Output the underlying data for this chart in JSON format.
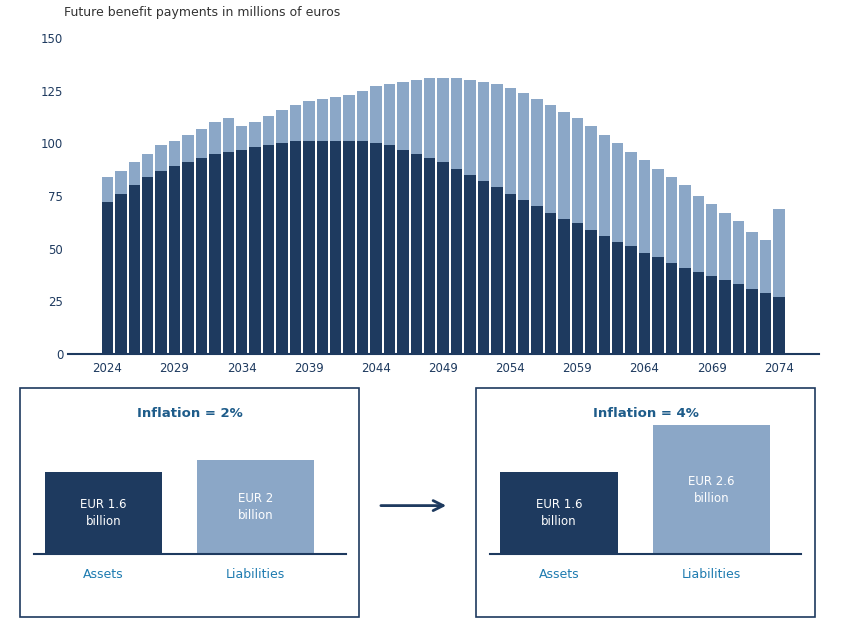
{
  "years": [
    2024,
    2025,
    2026,
    2027,
    2028,
    2029,
    2030,
    2031,
    2032,
    2033,
    2034,
    2035,
    2036,
    2037,
    2038,
    2039,
    2040,
    2041,
    2042,
    2043,
    2044,
    2045,
    2046,
    2047,
    2048,
    2049,
    2050,
    2051,
    2052,
    2053,
    2054,
    2055,
    2056,
    2057,
    2058,
    2059,
    2060,
    2061,
    2062,
    2063,
    2064,
    2065,
    2066,
    2067,
    2068,
    2069,
    2070,
    2071,
    2072,
    2073,
    2074
  ],
  "inflation_2pct": [
    72,
    76,
    80,
    84,
    87,
    89,
    91,
    93,
    95,
    96,
    97,
    98,
    99,
    100,
    101,
    101,
    101,
    101,
    101,
    101,
    100,
    99,
    97,
    95,
    93,
    91,
    88,
    85,
    82,
    79,
    76,
    73,
    70,
    67,
    64,
    62,
    59,
    56,
    53,
    51,
    48,
    46,
    43,
    41,
    39,
    37,
    35,
    33,
    31,
    29,
    27
  ],
  "inflation_4pct": [
    84,
    87,
    91,
    95,
    99,
    101,
    104,
    107,
    110,
    112,
    108,
    110,
    113,
    116,
    118,
    120,
    121,
    122,
    123,
    125,
    127,
    128,
    129,
    130,
    131,
    131,
    131,
    130,
    129,
    128,
    126,
    124,
    121,
    118,
    115,
    112,
    108,
    104,
    100,
    96,
    92,
    88,
    84,
    80,
    75,
    71,
    67,
    63,
    58,
    54,
    69
  ],
  "color_2pct": "#1e3a5f",
  "color_4pct": "#8ba7c7",
  "ylabel": "Future benefit payments in millions of euros",
  "ylim": [
    0,
    150
  ],
  "yticks": [
    0,
    25,
    50,
    75,
    100,
    125,
    150
  ],
  "legend_label_2pct": "Inflation 2%",
  "legend_label_4pct": "Inflation 4%",
  "bg_color": "#ffffff",
  "box_border_color": "#1e3a5f",
  "assets_liab_color": "#1e7bb0",
  "box_title_color": "#1e5c8a",
  "dark_box_color": "#1e3a5f",
  "light_box_color": "#8ba7c7",
  "tick_color": "#1e3a5f"
}
